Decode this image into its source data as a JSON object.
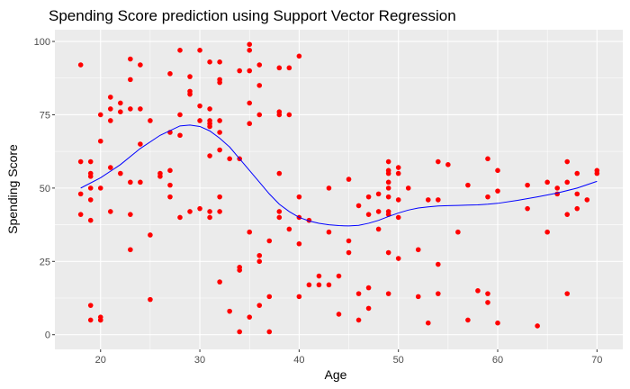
{
  "chart_data": {
    "type": "scatter",
    "title": "Spending Score prediction using Support Vector Regression",
    "xlabel": "Age",
    "ylabel": "Spending Score",
    "xlim": [
      15.4,
      72.6
    ],
    "ylim": [
      -5,
      104
    ],
    "xticks": [
      20,
      30,
      40,
      50,
      60,
      70
    ],
    "yticks": [
      0,
      25,
      50,
      75,
      100
    ],
    "grid": true,
    "background": "#ebebeb",
    "gridColor": "#ffffff",
    "pointColor": "#ff0000",
    "lineColor": "#0000ff",
    "points": [
      [
        18,
        92
      ],
      [
        18,
        59
      ],
      [
        18,
        48
      ],
      [
        18,
        41
      ],
      [
        19,
        59
      ],
      [
        19,
        55
      ],
      [
        19,
        54
      ],
      [
        19,
        50
      ],
      [
        19,
        46
      ],
      [
        19,
        39
      ],
      [
        19,
        10
      ],
      [
        19,
        5
      ],
      [
        20,
        75
      ],
      [
        20,
        66
      ],
      [
        20,
        50
      ],
      [
        20,
        6
      ],
      [
        20,
        5
      ],
      [
        20,
        5
      ],
      [
        21,
        81
      ],
      [
        21,
        77
      ],
      [
        21,
        73
      ],
      [
        21,
        57
      ],
      [
        21,
        42
      ],
      [
        22,
        79
      ],
      [
        22,
        76
      ],
      [
        22,
        55
      ],
      [
        23,
        94
      ],
      [
        23,
        87
      ],
      [
        23,
        77
      ],
      [
        23,
        52
      ],
      [
        23,
        41
      ],
      [
        23,
        29
      ],
      [
        24,
        92
      ],
      [
        24,
        77
      ],
      [
        24,
        65
      ],
      [
        24,
        52
      ],
      [
        25,
        73
      ],
      [
        25,
        34
      ],
      [
        25,
        12
      ],
      [
        26,
        55
      ],
      [
        26,
        54
      ],
      [
        27,
        89
      ],
      [
        27,
        69
      ],
      [
        27,
        56
      ],
      [
        27,
        51
      ],
      [
        27,
        47
      ],
      [
        28,
        97
      ],
      [
        28,
        75
      ],
      [
        28,
        68
      ],
      [
        28,
        40
      ],
      [
        29,
        88
      ],
      [
        29,
        83
      ],
      [
        29,
        82
      ],
      [
        29,
        42
      ],
      [
        30,
        97
      ],
      [
        30,
        78
      ],
      [
        30,
        73
      ],
      [
        30,
        43
      ],
      [
        31,
        93
      ],
      [
        31,
        77
      ],
      [
        31,
        73
      ],
      [
        31,
        72
      ],
      [
        31,
        71
      ],
      [
        31,
        61
      ],
      [
        31,
        42
      ],
      [
        31,
        40
      ],
      [
        32,
        93
      ],
      [
        32,
        87
      ],
      [
        32,
        86
      ],
      [
        32,
        73
      ],
      [
        32,
        69
      ],
      [
        32,
        63
      ],
      [
        32,
        47
      ],
      [
        32,
        42
      ],
      [
        32,
        18
      ],
      [
        33,
        60
      ],
      [
        33,
        8
      ],
      [
        34,
        90
      ],
      [
        34,
        60
      ],
      [
        34,
        23
      ],
      [
        34,
        22
      ],
      [
        34,
        1
      ],
      [
        35,
        99
      ],
      [
        35,
        97
      ],
      [
        35,
        90
      ],
      [
        35,
        79
      ],
      [
        35,
        72
      ],
      [
        35,
        35
      ],
      [
        35,
        6
      ],
      [
        36,
        92
      ],
      [
        36,
        85
      ],
      [
        36,
        75
      ],
      [
        36,
        27
      ],
      [
        36,
        25
      ],
      [
        36,
        10
      ],
      [
        37,
        32
      ],
      [
        37,
        13
      ],
      [
        37,
        1
      ],
      [
        38,
        91
      ],
      [
        38,
        76
      ],
      [
        38,
        75
      ],
      [
        38,
        55
      ],
      [
        38,
        42
      ],
      [
        38,
        40
      ],
      [
        39,
        91
      ],
      [
        39,
        75
      ],
      [
        39,
        36
      ],
      [
        40,
        95
      ],
      [
        40,
        47
      ],
      [
        40,
        40
      ],
      [
        40,
        31
      ],
      [
        40,
        13
      ],
      [
        41,
        39
      ],
      [
        41,
        17
      ],
      [
        42,
        20
      ],
      [
        42,
        17
      ],
      [
        43,
        50
      ],
      [
        43,
        35
      ],
      [
        43,
        17
      ],
      [
        44,
        20
      ],
      [
        44,
        7
      ],
      [
        45,
        53
      ],
      [
        45,
        32
      ],
      [
        45,
        28
      ],
      [
        46,
        44
      ],
      [
        46,
        5
      ],
      [
        46,
        14
      ],
      [
        47,
        47
      ],
      [
        47,
        41
      ],
      [
        47,
        16
      ],
      [
        47,
        9
      ],
      [
        48,
        48
      ],
      [
        48,
        42
      ],
      [
        48,
        36
      ],
      [
        49,
        59
      ],
      [
        49,
        56
      ],
      [
        49,
        55
      ],
      [
        49,
        52
      ],
      [
        49,
        50
      ],
      [
        49,
        47
      ],
      [
        49,
        41
      ],
      [
        49,
        42
      ],
      [
        49,
        28
      ],
      [
        49,
        14
      ],
      [
        50,
        57
      ],
      [
        50,
        55
      ],
      [
        50,
        46
      ],
      [
        50,
        40
      ],
      [
        50,
        26
      ],
      [
        51,
        50
      ],
      [
        52,
        29
      ],
      [
        52,
        13
      ],
      [
        53,
        46
      ],
      [
        53,
        4
      ],
      [
        54,
        59
      ],
      [
        54,
        46
      ],
      [
        54,
        24
      ],
      [
        54,
        14
      ],
      [
        55,
        58
      ],
      [
        56,
        35
      ],
      [
        57,
        51
      ],
      [
        57,
        5
      ],
      [
        58,
        15
      ],
      [
        59,
        60
      ],
      [
        59,
        47
      ],
      [
        59,
        14
      ],
      [
        59,
        11
      ],
      [
        60,
        56
      ],
      [
        60,
        49
      ],
      [
        60,
        4
      ],
      [
        63,
        51
      ],
      [
        63,
        43
      ],
      [
        64,
        3
      ],
      [
        65,
        52
      ],
      [
        65,
        35
      ],
      [
        66,
        50
      ],
      [
        66,
        48
      ],
      [
        67,
        59
      ],
      [
        67,
        52
      ],
      [
        67,
        41
      ],
      [
        67,
        14
      ],
      [
        68,
        55
      ],
      [
        68,
        48
      ],
      [
        68,
        43
      ],
      [
        69,
        46
      ],
      [
        70,
        56
      ],
      [
        70,
        55
      ]
    ],
    "prediction_line": [
      [
        18,
        50
      ],
      [
        20,
        53.5
      ],
      [
        22,
        58
      ],
      [
        24,
        63.5
      ],
      [
        26,
        68
      ],
      [
        28,
        71.2
      ],
      [
        29,
        71.5
      ],
      [
        30,
        71
      ],
      [
        31,
        69.5
      ],
      [
        32,
        67
      ],
      [
        33,
        64
      ],
      [
        34,
        60
      ],
      [
        35,
        56
      ],
      [
        36,
        52
      ],
      [
        37,
        48
      ],
      [
        38,
        44.5
      ],
      [
        39,
        42
      ],
      [
        40,
        40
      ],
      [
        41,
        38.8
      ],
      [
        42,
        38
      ],
      [
        43,
        37.5
      ],
      [
        44,
        37.2
      ],
      [
        45,
        37.1
      ],
      [
        46,
        37.3
      ],
      [
        47,
        38
      ],
      [
        48,
        39
      ],
      [
        49,
        40.3
      ],
      [
        50,
        41.5
      ],
      [
        51,
        42.5
      ],
      [
        52,
        43.2
      ],
      [
        53,
        43.6
      ],
      [
        54,
        43.9
      ],
      [
        55,
        44
      ],
      [
        56,
        44.1
      ],
      [
        57,
        44.2
      ],
      [
        58,
        44.3
      ],
      [
        59,
        44.5
      ],
      [
        60,
        44.8
      ],
      [
        62,
        45.8
      ],
      [
        64,
        47
      ],
      [
        66,
        48.3
      ],
      [
        68,
        50
      ],
      [
        70,
        52.3
      ]
    ]
  }
}
